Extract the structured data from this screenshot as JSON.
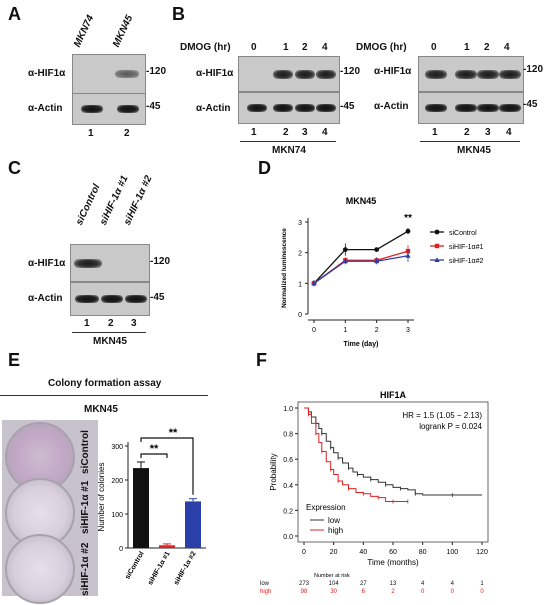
{
  "panels": {
    "A": {
      "letter": "A",
      "lanes": [
        "MKN74",
        "MKN45"
      ],
      "rows": [
        "α-HIF1α",
        "α-Actin"
      ],
      "markers": [
        "-120",
        "-45"
      ],
      "lane_numbers": [
        "1",
        "2"
      ]
    },
    "B": {
      "letter": "B",
      "dmog_label": "DMOG (hr)",
      "timepoints": [
        "0",
        "1",
        "2",
        "4"
      ],
      "rows": [
        "α-HIF1α",
        "α-Actin"
      ],
      "markers": [
        "-120",
        "-45"
      ],
      "lane_numbers": [
        "1",
        "2",
        "3",
        "4"
      ],
      "cell_lines": [
        "MKN74",
        "MKN45"
      ]
    },
    "C": {
      "letter": "C",
      "lanes": [
        "siControl",
        "siHIF-1α #1",
        "siHIF-1α #2"
      ],
      "rows": [
        "α-HIF1α",
        "α-Actin"
      ],
      "markers": [
        "-120",
        "-45"
      ],
      "lane_numbers": [
        "1",
        "2",
        "3"
      ],
      "cell_line": "MKN45"
    },
    "D": {
      "letter": "D"
    },
    "E": {
      "letter": "E",
      "title": "Colony formation assay",
      "subtitle": "MKN45",
      "dish_labels": [
        "siControl",
        "siHIF-1α #1",
        "siHIF-1α #2"
      ]
    },
    "F": {
      "letter": "F"
    }
  },
  "chart_data": [
    {
      "panel": "D",
      "type": "line",
      "title": "MKN45",
      "xlabel": "Time (day)",
      "ylabel": "Normalized luminescence",
      "x": [
        0,
        1,
        2,
        3
      ],
      "ylim": [
        0,
        3
      ],
      "xticks": [
        "0",
        "1",
        "2",
        "3"
      ],
      "yticks": [
        "0",
        "1",
        "2",
        "3"
      ],
      "annotation": "**",
      "legend_position": "right",
      "series": [
        {
          "name": "siControl",
          "values": [
            1.0,
            2.1,
            2.1,
            2.7
          ],
          "errors": [
            0.1,
            0.2,
            0.05,
            0.1
          ],
          "color": "#111111",
          "marker": "circle"
        },
        {
          "name": "siHIF-1α#1",
          "values": [
            1.0,
            1.75,
            1.75,
            2.05
          ],
          "errors": [
            0.1,
            0.1,
            0.1,
            0.2
          ],
          "color": "#e02020",
          "marker": "square"
        },
        {
          "name": "siHIF-1α#2",
          "values": [
            1.0,
            1.72,
            1.72,
            1.9
          ],
          "errors": [
            0.1,
            0.1,
            0.1,
            0.2
          ],
          "color": "#2a3fa8",
          "marker": "triangle"
        }
      ]
    },
    {
      "panel": "E",
      "type": "bar",
      "ylabel": "Number of colonies",
      "categories": [
        "siControl",
        "siHIF-1α #1",
        "siHIF-1α #2"
      ],
      "values": [
        235,
        8,
        137
      ],
      "errors": [
        18,
        4,
        8
      ],
      "colors": [
        "#111111",
        "#e02020",
        "#2a3fa8"
      ],
      "ylim": [
        0,
        300
      ],
      "yticks": [
        "0",
        "100",
        "200",
        "300"
      ],
      "significance": [
        "**",
        "**"
      ]
    },
    {
      "panel": "F",
      "type": "line",
      "title": "HIF1A",
      "xlabel": "Time (months)",
      "ylabel": "Probability",
      "xlim": [
        0,
        120
      ],
      "ylim": [
        0,
        1.0
      ],
      "xticks": [
        "0",
        "20",
        "40",
        "60",
        "80",
        "100",
        "120"
      ],
      "yticks": [
        "0.0",
        "0.2",
        "0.4",
        "0.6",
        "0.8",
        "1.0"
      ],
      "annotations": [
        "HR = 1.5 (1.05 − 2.13)",
        "logrank P = 0.024"
      ],
      "legend_title": "Expression",
      "series": [
        {
          "name": "low",
          "color": "#333333",
          "x": [
            0,
            3,
            5,
            8,
            10,
            12,
            15,
            18,
            20,
            23,
            26,
            30,
            33,
            36,
            40,
            45,
            50,
            55,
            60,
            65,
            70,
            75,
            80,
            100,
            120
          ],
          "values": [
            1.0,
            0.97,
            0.93,
            0.88,
            0.84,
            0.8,
            0.74,
            0.69,
            0.65,
            0.61,
            0.57,
            0.53,
            0.5,
            0.48,
            0.46,
            0.44,
            0.42,
            0.4,
            0.38,
            0.37,
            0.36,
            0.33,
            0.32,
            0.32,
            0.32
          ]
        },
        {
          "name": "high",
          "color": "#e02020",
          "x": [
            0,
            3,
            5,
            8,
            10,
            12,
            15,
            18,
            20,
            23,
            26,
            30,
            35,
            40,
            45,
            50,
            55,
            60,
            65,
            70
          ],
          "values": [
            1.0,
            0.95,
            0.88,
            0.8,
            0.73,
            0.66,
            0.58,
            0.52,
            0.48,
            0.43,
            0.4,
            0.37,
            0.34,
            0.33,
            0.31,
            0.3,
            0.27,
            0.27,
            0.27,
            0.27
          ]
        }
      ],
      "risk_table": {
        "title": "Number at risk",
        "rows": [
          {
            "label": "low",
            "counts": [
              "273",
              "104",
              "27",
              "13",
              "4",
              "4",
              "1"
            ],
            "color": "#111111"
          },
          {
            "label": "high",
            "counts": [
              "98",
              "30",
              "6",
              "2",
              "0",
              "0",
              "0"
            ],
            "color": "#e02020"
          }
        ]
      }
    }
  ]
}
